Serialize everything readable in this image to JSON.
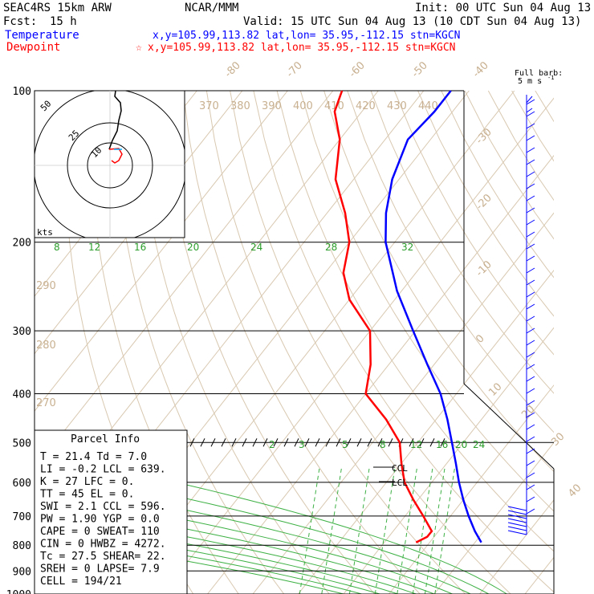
{
  "header": {
    "model": "SEAC4RS 15km ARW",
    "center": "NCAR/MMM",
    "init": "Init: 00 UTC Sun 04 Aug 13",
    "fcst_label": "Fcst:",
    "fcst_value": "15 h",
    "valid": "Valid: 15 UTC Sun 04 Aug 13 (10 CDT Sun 04 Aug 13)",
    "temp_label": "Temperature",
    "temp_info": "x,y=105.99,113.82   lat,lon= 35.95,-112.15   stn=KGCN",
    "dew_label": "Dewpoint",
    "dew_star": "☆",
    "dew_info": "x,y=105.99,113.82   lat,lon= 35.95,-112.15   stn=KGCN",
    "full_barb": "Full barb:",
    "full_barb_unit": "5 m s",
    "full_barb_exp": "-1",
    "kts": "kts",
    "temp_color": "#0000ff",
    "dew_color": "#ff0000"
  },
  "chart_data": {
    "type": "line",
    "title": "SEAC4RS 15km ARW skew-T",
    "pressure_levels": [
      100,
      200,
      300,
      400,
      500,
      600,
      700,
      800,
      900,
      1000
    ],
    "temp_ticks": [
      "-80",
      "-70",
      "-60",
      "-50",
      "-40",
      "-30",
      "-20",
      "-10",
      "0",
      "10",
      "20",
      "30",
      "40"
    ],
    "theta_labels_top": [
      "370",
      "380",
      "390",
      "400",
      "410",
      "420",
      "430",
      "440"
    ],
    "theta_labels_left": [
      "290",
      "280",
      "270"
    ],
    "mixing_ratio_top": [
      "8",
      "12",
      "16",
      "20",
      "24",
      "28",
      "32"
    ],
    "mixing_ratio_low": [
      "2",
      "3",
      "5",
      "8",
      "12",
      "16",
      "20",
      "24"
    ],
    "hodograph_rings": [
      "50",
      "25",
      "10"
    ],
    "series": [
      {
        "name": "Temperature",
        "color": "#0000ff",
        "points": [
          [
            790,
            21.4
          ],
          [
            750,
            18.0
          ],
          [
            700,
            14.0
          ],
          [
            650,
            10.0
          ],
          [
            600,
            6.0
          ],
          [
            550,
            2.0
          ],
          [
            500,
            -2.5
          ],
          [
            450,
            -7.5
          ],
          [
            400,
            -13.5
          ],
          [
            350,
            -21.5
          ],
          [
            300,
            -30.5
          ],
          [
            250,
            -41.0
          ],
          [
            200,
            -52.0
          ],
          [
            175,
            -57.0
          ],
          [
            150,
            -61.5
          ],
          [
            125,
            -65.0
          ],
          [
            110,
            -64.0
          ],
          [
            100,
            -64.0
          ]
        ]
      },
      {
        "name": "Dewpoint",
        "color": "#ff0000",
        "points": [
          [
            790,
            7.0
          ],
          [
            770,
            8.5
          ],
          [
            750,
            8.5
          ],
          [
            700,
            4.0
          ],
          [
            650,
            -1.0
          ],
          [
            600,
            -6.0
          ],
          [
            550,
            -10.0
          ],
          [
            500,
            -14.0
          ],
          [
            450,
            -21.0
          ],
          [
            400,
            -30.0
          ],
          [
            350,
            -34.0
          ],
          [
            300,
            -40.0
          ],
          [
            260,
            -50.0
          ],
          [
            230,
            -56.0
          ],
          [
            200,
            -60.0
          ],
          [
            175,
            -66.0
          ],
          [
            150,
            -74.0
          ],
          [
            125,
            -80.0
          ],
          [
            110,
            -86.0
          ],
          [
            100,
            -88.0
          ]
        ]
      }
    ],
    "markers": [
      {
        "label": "CCL",
        "pressure": 596
      },
      {
        "label": "LCL",
        "pressure": 639
      }
    ],
    "parcel_info": {
      "title": "Parcel Info",
      "rows": [
        [
          "T",
          "21.4",
          "Td",
          "7.0"
        ],
        [
          "LI",
          "-0.2",
          "LCL",
          "639."
        ],
        [
          "K",
          "27",
          "LFC",
          "0."
        ],
        [
          "TT",
          "45",
          "EL",
          "0."
        ],
        [
          "SWI",
          "2.1",
          "CCL",
          "596."
        ],
        [
          "PW",
          "1.90",
          "YGP",
          "0.0"
        ],
        [
          "CAPE",
          "0",
          "SWEAT",
          "110"
        ],
        [
          "CIN",
          "0",
          "HWBZ",
          "4272."
        ],
        [
          "Tc",
          "27.5",
          "SHEAR",
          "22."
        ],
        [
          "SREH",
          "0",
          "LAPSE",
          "7.9"
        ],
        [
          "CELL",
          "194/21",
          "",
          ""
        ]
      ]
    }
  }
}
